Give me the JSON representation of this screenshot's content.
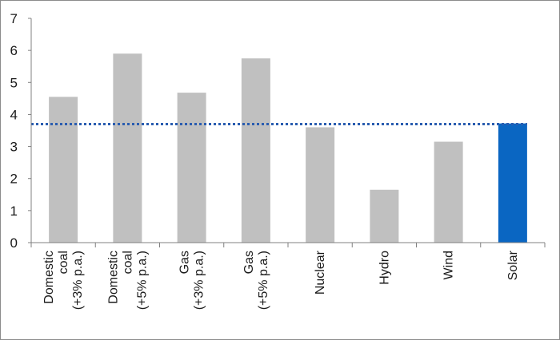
{
  "chart_data": {
    "type": "bar",
    "title": "",
    "xlabel": "",
    "ylabel": "",
    "ylim": [
      0,
      7
    ],
    "yticks": [
      "0",
      "1",
      "2",
      "3",
      "4",
      "5",
      "6",
      "7"
    ],
    "categories": [
      [
        "Domestic",
        "coal",
        "(+3% p.a.)"
      ],
      [
        "Domestic",
        "coal",
        "(+5% p.a.)"
      ],
      [
        "Gas",
        "(+3% p.a.)"
      ],
      [
        "Gas",
        "(+5% p.a.)"
      ],
      [
        "Nuclear"
      ],
      [
        "Hydro"
      ],
      [
        "Wind"
      ],
      [
        "Solar"
      ]
    ],
    "values": [
      4.55,
      5.9,
      4.68,
      5.75,
      3.6,
      1.65,
      3.15,
      3.72
    ],
    "highlight_index": 7,
    "reference_line": 3.7,
    "grid": false,
    "colors": {
      "bar": "#c0c0c0",
      "highlight": "#0a66c2",
      "reference": "#2a5db0",
      "axis": "#808080"
    }
  }
}
